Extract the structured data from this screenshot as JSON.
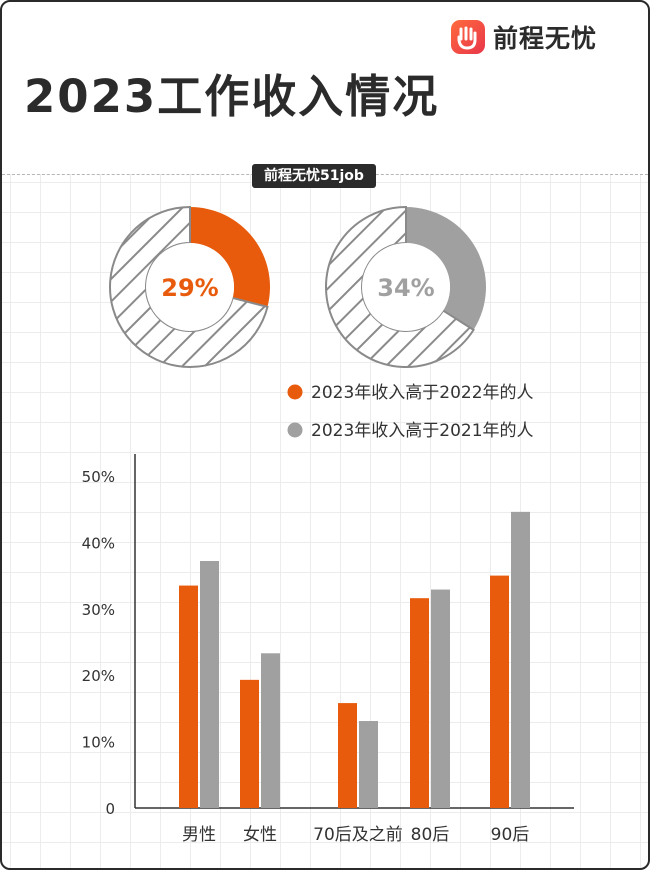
{
  "header": {
    "logo_text": "前程无忧",
    "title": "2023工作收入情况",
    "source": "前程无忧51job"
  },
  "colors": {
    "orange": "#e85b0c",
    "gray": "#a0a0a0",
    "hatch": "#8a8a8a"
  },
  "chart_data": [
    {
      "type": "pie",
      "title": "",
      "slices": [
        {
          "name": "2023年收入高于2022年的人",
          "value": 29,
          "label": "29%"
        },
        {
          "name": "",
          "value": 71
        }
      ]
    },
    {
      "type": "pie",
      "title": "",
      "slices": [
        {
          "name": "2023年收入高于2021年的人",
          "value": 34,
          "label": "34%"
        },
        {
          "name": "",
          "value": 66
        }
      ]
    },
    {
      "type": "bar",
      "title": "",
      "categories": [
        "男性",
        "女性",
        "70后及之前",
        "80后",
        "90后"
      ],
      "series": [
        {
          "name": "2023年收入高于2022年的人",
          "values": [
            33.5,
            19.3,
            null,
            31.6,
            35
          ]
        },
        {
          "name": "2023年收入高于2021年的人",
          "values": [
            37.2,
            23.3,
            null,
            32.9,
            44.6
          ]
        }
      ],
      "extra_bars": [
        {
          "category": "70后及之前",
          "values": [
            15.8,
            13.1
          ]
        }
      ],
      "ylim": [
        0,
        50
      ],
      "yticks": [
        "0",
        "10%",
        "20%",
        "30%",
        "40%",
        "50%"
      ],
      "grid": false,
      "legend": "top-right"
    }
  ]
}
